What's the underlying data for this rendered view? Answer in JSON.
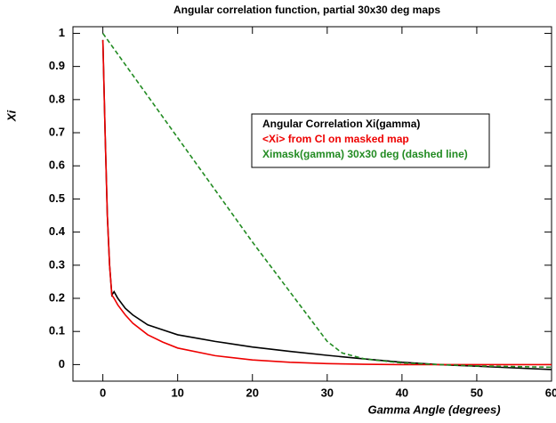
{
  "chart_data": {
    "type": "line",
    "title": "Angular correlation function, partial 30x30 deg maps",
    "x_label": "Gamma Angle (degrees)",
    "y_label": "Xi",
    "xlim": [
      -4,
      60
    ],
    "xticks": [
      0,
      10,
      20,
      30,
      40,
      50,
      60
    ],
    "ylim": [
      -0.05,
      1.02
    ],
    "yticks": [
      0,
      0.1,
      0.2,
      0.3,
      0.4,
      0.5,
      0.6,
      0.7,
      0.8,
      0.9,
      1
    ],
    "series": [
      {
        "name": "Angular Correlation Xi(gamma)",
        "color": "#000000",
        "dashed": false,
        "x": [
          0,
          0.3,
          0.6,
          0.9,
          1.2,
          1.5,
          2,
          3,
          4,
          6,
          8,
          10,
          15,
          20,
          25,
          30,
          35,
          40,
          45,
          50,
          55,
          60
        ],
        "values": [
          0.98,
          0.7,
          0.45,
          0.3,
          0.21,
          0.22,
          0.2,
          0.17,
          0.15,
          0.12,
          0.105,
          0.09,
          0.07,
          0.053,
          0.04,
          0.028,
          0.017,
          0.007,
          0,
          -0.005,
          -0.01,
          -0.015
        ]
      },
      {
        "name": "<Xi> from Cl on masked map",
        "color": "#ee0000",
        "dashed": false,
        "x": [
          0,
          0.3,
          0.6,
          0.9,
          1.2,
          1.5,
          2,
          3,
          4,
          6,
          8,
          10,
          15,
          20,
          25,
          30,
          35,
          40,
          50,
          60
        ],
        "values": [
          0.98,
          0.7,
          0.45,
          0.3,
          0.21,
          0.2,
          0.18,
          0.15,
          0.125,
          0.09,
          0.068,
          0.05,
          0.027,
          0.014,
          0.007,
          0.003,
          0.001,
          0,
          0,
          0
        ]
      },
      {
        "name": "Ximask(gamma) 30x30 deg (dashed line)",
        "color": "#228b22",
        "dashed": true,
        "x": [
          0,
          10,
          20,
          30,
          32,
          35,
          40,
          45,
          50,
          60
        ],
        "values": [
          1,
          0.685,
          0.37,
          0.07,
          0.035,
          0.017,
          0.005,
          0,
          -0.004,
          -0.008
        ]
      }
    ]
  }
}
